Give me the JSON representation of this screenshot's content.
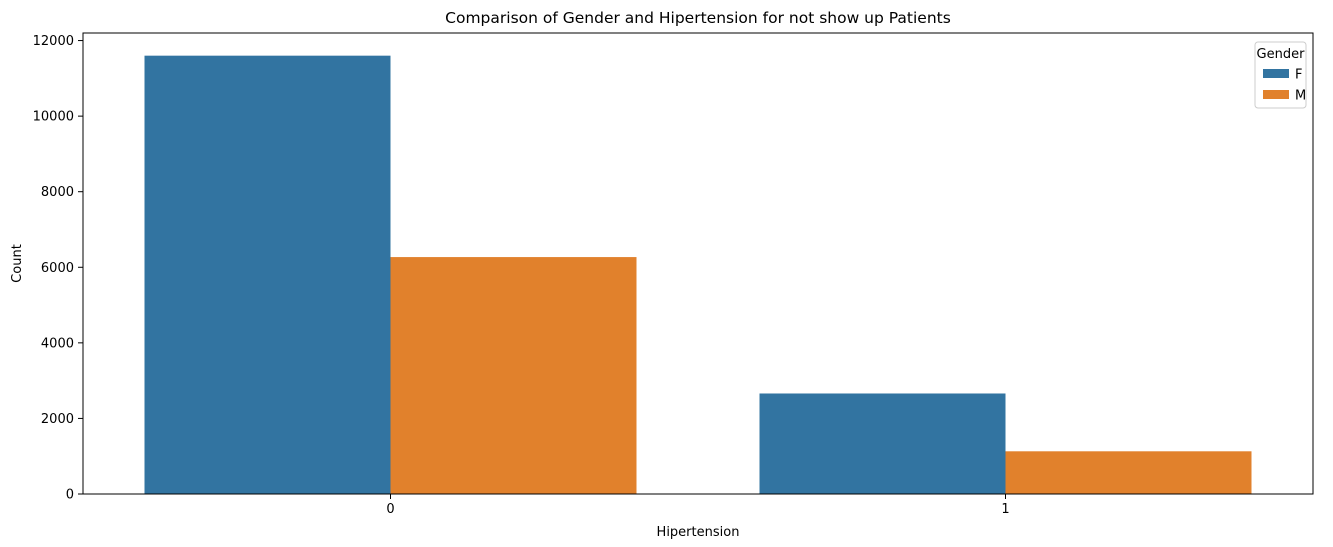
{
  "chart_data": {
    "type": "bar",
    "title": "Comparison of Gender and Hipertension for not show up Patients",
    "xlabel": "Hipertension",
    "ylabel": "Count",
    "categories": [
      "0",
      "1"
    ],
    "series": [
      {
        "name": "F",
        "values": [
          11600,
          2660
        ],
        "color": "#3274a1"
      },
      {
        "name": "M",
        "values": [
          6270,
          1130
        ],
        "color": "#e1812c"
      }
    ],
    "ylim": [
      0,
      12200
    ],
    "yticks": [
      0,
      2000,
      4000,
      6000,
      8000,
      10000,
      12000
    ],
    "grid": false,
    "legend": {
      "title": "Gender",
      "placement": "top-right"
    }
  }
}
